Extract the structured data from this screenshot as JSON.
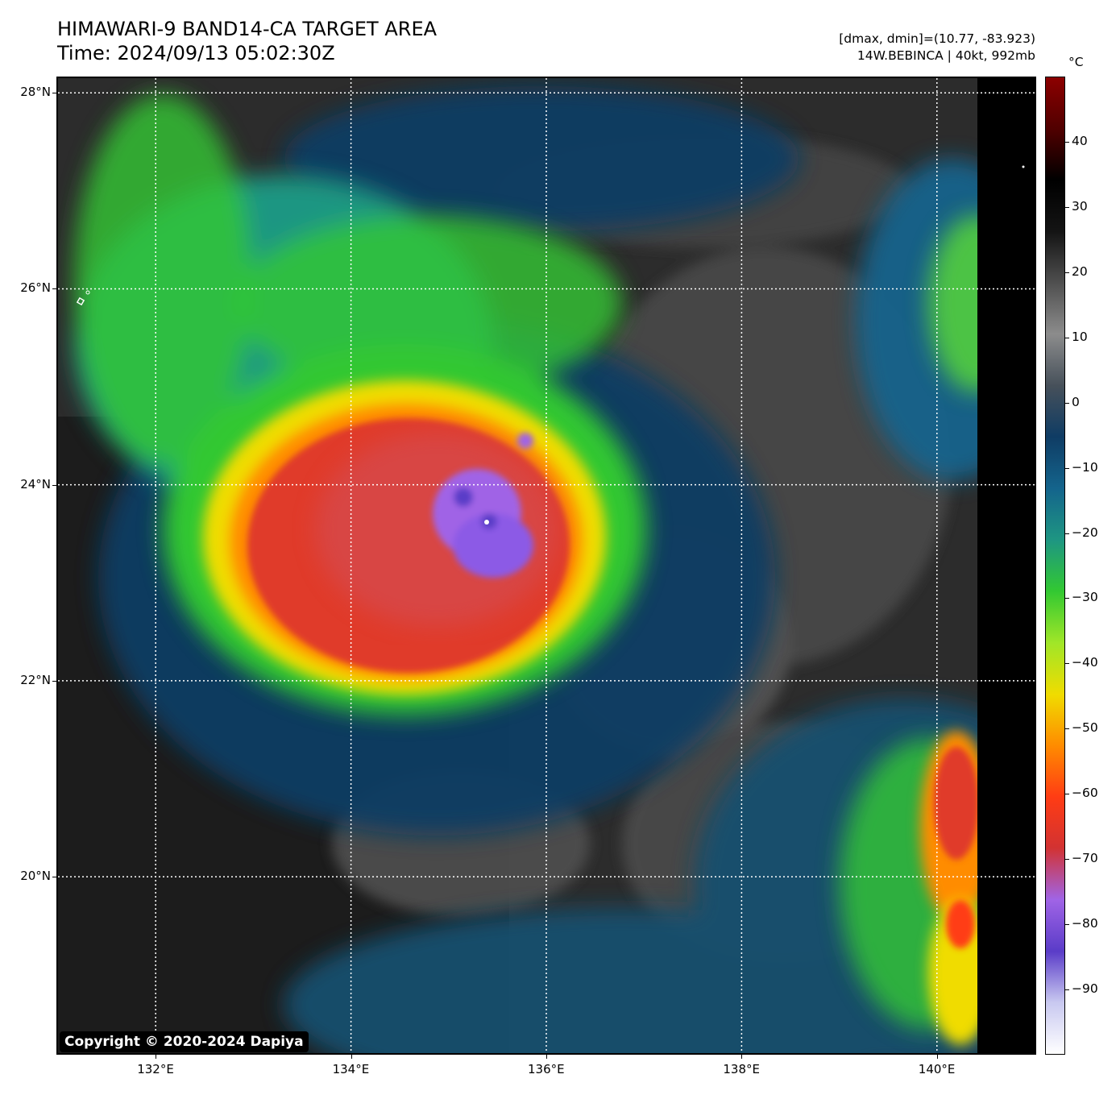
{
  "title": {
    "line1": "HIMAWARI-9 BAND14-CA TARGET AREA",
    "line2": "Time: 2024/09/13 05:02:30Z"
  },
  "info": {
    "line1": "[dmax, dmin]=(10.77, -83.923)",
    "line2": "14W.BEBINCA | 40kt, 992mb"
  },
  "map": {
    "lat_labels": [
      "28°N",
      "26°N",
      "24°N",
      "22°N",
      "20°N"
    ],
    "lon_labels": [
      "132°E",
      "134°E",
      "136°E",
      "138°E",
      "140°E"
    ],
    "lat_values": [
      28,
      26,
      24,
      22,
      20
    ],
    "lon_values": [
      132,
      134,
      136,
      138,
      140
    ],
    "extent": {
      "lon_min": 131.0,
      "lon_max": 141.0,
      "lat_min": 18.2,
      "lat_max": 28.15
    }
  },
  "colorbar": {
    "unit": "°C",
    "labels": [
      "40",
      "30",
      "20",
      "10",
      "0",
      "−10",
      "−20",
      "−30",
      "−40",
      "−50",
      "−60",
      "−70",
      "−80",
      "−90"
    ],
    "values": [
      40,
      30,
      20,
      10,
      0,
      -10,
      -20,
      -30,
      -40,
      -50,
      -60,
      -70,
      -80,
      -90
    ],
    "range": [
      -100,
      50
    ],
    "colors": [
      "#ffffff",
      "#c8c8f0",
      "#5a3cc8",
      "#a064e6",
      "#d23232",
      "#ff3c14",
      "#ff8c00",
      "#f0dc00",
      "#a0e628",
      "#32c832",
      "#1e9682",
      "#14648c",
      "#0f3c64",
      "#46505a",
      "#8c8c8c",
      "#505050",
      "#141414",
      "#000000",
      "#500000",
      "#8c0000"
    ]
  },
  "copyright": "Copyright © 2020-2024 Dapiya"
}
